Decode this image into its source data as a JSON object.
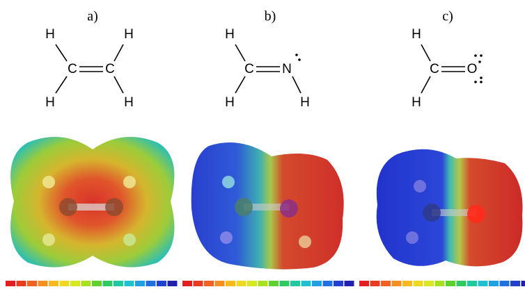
{
  "panels": [
    {
      "label": "a)",
      "atoms": [
        "H",
        "H",
        "C",
        "C",
        "H",
        "H"
      ]
    },
    {
      "label": "b)",
      "atoms": [
        "H",
        "C",
        "N",
        "H",
        "H"
      ]
    },
    {
      "label": "c)",
      "atoms": [
        "H",
        "C",
        "O",
        "H"
      ]
    }
  ]
}
